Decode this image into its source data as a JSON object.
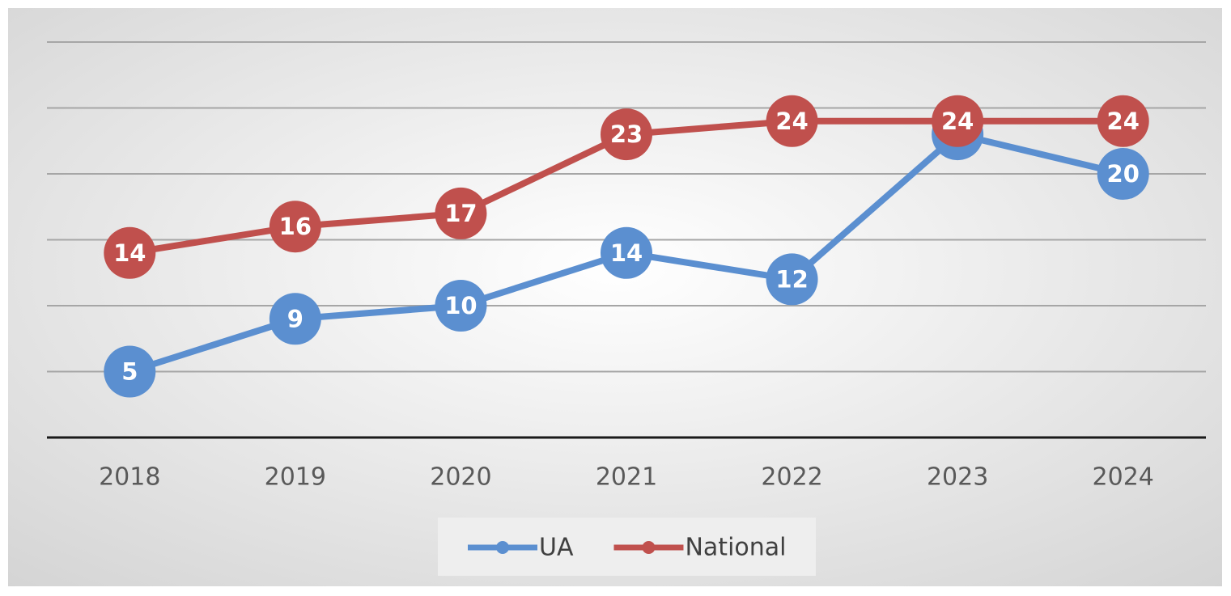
{
  "chart_data": {
    "type": "line",
    "categories": [
      "2018",
      "2019",
      "2020",
      "2021",
      "2022",
      "2023",
      "2024"
    ],
    "series": [
      {
        "name": "UA",
        "color": "#5b8fd0",
        "values": [
          5,
          9,
          10,
          14,
          12,
          23,
          20
        ]
      },
      {
        "name": "National",
        "color": "#c0504d",
        "values": [
          14,
          16,
          17,
          23,
          24,
          24,
          24
        ]
      }
    ],
    "ylim": [
      0,
      30
    ],
    "yticks": [
      0,
      5,
      10,
      15,
      20,
      25,
      30
    ],
    "grid": true,
    "legend": "bottom"
  }
}
